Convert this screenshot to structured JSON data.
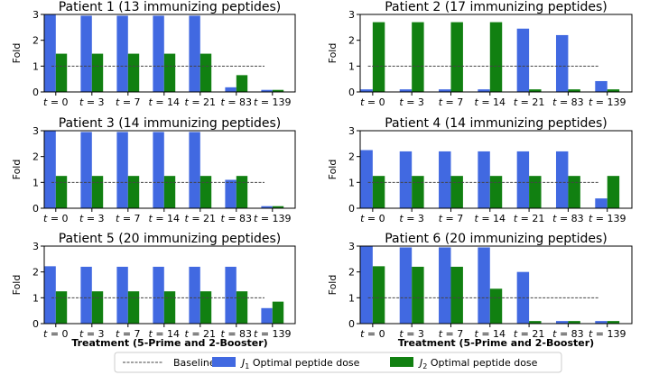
{
  "chart_data": {
    "type": "bar",
    "categories": [
      "t = 0",
      "t = 3",
      "t = 7",
      "t = 14",
      "t = 21",
      "t = 83",
      "t = 139"
    ],
    "category_parts": [
      {
        "var": "t",
        "rest": " = 0"
      },
      {
        "var": "t",
        "rest": " = 3"
      },
      {
        "var": "t",
        "rest": " = 7"
      },
      {
        "var": "t",
        "rest": " = 14"
      },
      {
        "var": "t",
        "rest": " = 21"
      },
      {
        "var": "t",
        "rest": " = 83"
      },
      {
        "var": "t",
        "rest": " = 139"
      }
    ],
    "ylabel": "Fold",
    "xlabel": "Treatment (5-Prime and 2-Booster)",
    "ylim": [
      0,
      3
    ],
    "yticks": [
      "0",
      "1",
      "2",
      "3"
    ],
    "baseline": 1,
    "colors": {
      "j1": "#4169E1",
      "j2": "#118011",
      "baseline": "#444444"
    },
    "legend": {
      "placement": "bottom-center",
      "baseline_label": "Baseline",
      "j1_var": "J",
      "j1_sub": "1",
      "j1_text": " Optimal peptide dose",
      "j2_var": "J",
      "j2_sub": "2",
      "j2_text": " Optimal peptide dose"
    },
    "panels": [
      {
        "title": "Patient 1 (13 immunizing peptides)",
        "series": [
          {
            "values": [
              3.0,
              2.95,
              2.95,
              2.95,
              2.95,
              0.18,
              0.08
            ]
          },
          {
            "values": [
              1.48,
              1.48,
              1.48,
              1.48,
              1.48,
              0.65,
              0.08
            ]
          }
        ]
      },
      {
        "title": "Patient 2 (17 immunizing peptides)",
        "series": [
          {
            "values": [
              0.1,
              0.1,
              0.1,
              0.1,
              2.45,
              2.2,
              0.42
            ]
          },
          {
            "values": [
              2.7,
              2.7,
              2.7,
              2.7,
              0.1,
              0.1,
              0.1
            ]
          }
        ]
      },
      {
        "title": "Patient 3 (14 immunizing peptides)",
        "series": [
          {
            "values": [
              3.0,
              2.95,
              2.95,
              2.95,
              2.95,
              1.1,
              0.08
            ]
          },
          {
            "values": [
              1.25,
              1.25,
              1.25,
              1.25,
              1.25,
              1.25,
              0.08
            ]
          }
        ]
      },
      {
        "title": "Patient 4 (14 immunizing peptides)",
        "series": [
          {
            "values": [
              2.25,
              2.2,
              2.2,
              2.2,
              2.2,
              2.2,
              0.38
            ]
          },
          {
            "values": [
              1.25,
              1.25,
              1.25,
              1.25,
              1.25,
              1.25,
              1.25
            ]
          }
        ]
      },
      {
        "title": "Patient 5 (20 immunizing peptides)",
        "series": [
          {
            "values": [
              2.22,
              2.2,
              2.2,
              2.2,
              2.2,
              2.2,
              0.6
            ]
          },
          {
            "values": [
              1.25,
              1.25,
              1.25,
              1.25,
              1.25,
              1.25,
              0.85
            ]
          }
        ]
      },
      {
        "title": "Patient 6 (20 immunizing peptides)",
        "series": [
          {
            "values": [
              3.0,
              2.95,
              2.95,
              2.95,
              2.0,
              0.1,
              0.1
            ]
          },
          {
            "values": [
              2.22,
              2.2,
              2.2,
              1.35,
              0.1,
              0.1,
              0.1
            ]
          }
        ]
      }
    ]
  }
}
